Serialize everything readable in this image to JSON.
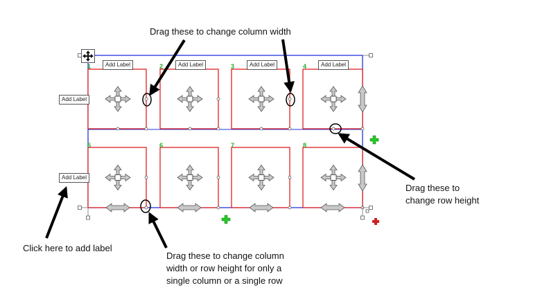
{
  "annotations": {
    "column_width": "Drag these to change column width",
    "row_height_line1": "Drag these to",
    "row_height_line2": "change row height",
    "add_label": "Click here to add label",
    "single_line1": "Drag these to change column",
    "single_line2": "width or row height for only a",
    "single_line3": "single column or a single row"
  },
  "grid": {
    "add_label_text": "Add Label",
    "cell_numbers": [
      "1",
      "2",
      "3",
      "4",
      "5",
      "6",
      "7",
      "8"
    ]
  },
  "colors": {
    "grid_border": "#2233dd",
    "cell_border": "#e02020",
    "add_plus": "#22cc22",
    "remove_plus": "#cc2222",
    "arrow_fill": "#c8c8c8",
    "arrow_stroke": "#555555",
    "callout": "#000000"
  }
}
